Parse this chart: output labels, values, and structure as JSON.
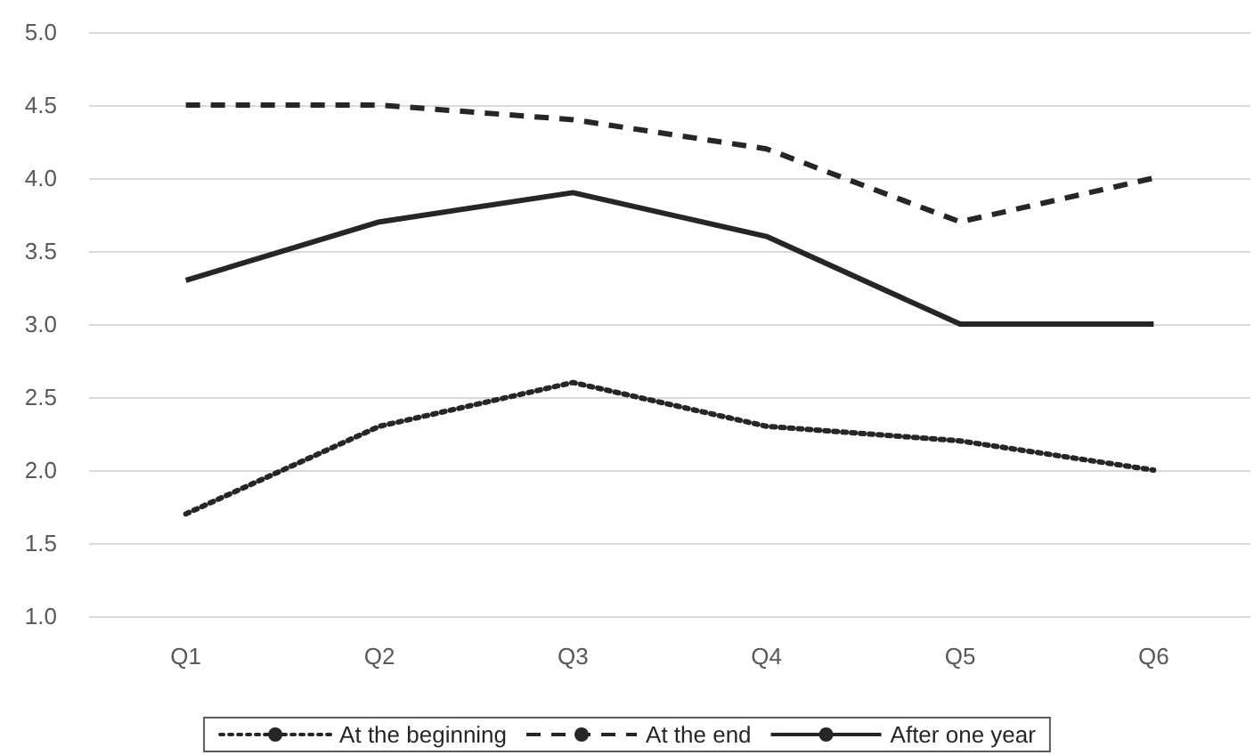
{
  "chart_data": {
    "type": "line",
    "categories": [
      "Q1",
      "Q2",
      "Q3",
      "Q4",
      "Q5",
      "Q6"
    ],
    "series": [
      {
        "name": "At the beginning",
        "color": "#262626",
        "line_style": "dotted",
        "values": [
          1.7,
          2.3,
          2.6,
          2.3,
          2.2,
          2.0
        ]
      },
      {
        "name": "At the end",
        "color": "#262626",
        "line_style": "dashed",
        "values": [
          4.5,
          4.5,
          4.4,
          4.2,
          3.7,
          4.0
        ]
      },
      {
        "name": "After one year",
        "color": "#262626",
        "line_style": "solid",
        "values": [
          3.3,
          3.7,
          3.9,
          3.6,
          3.0,
          3.0
        ]
      }
    ],
    "ylim": [
      1.0,
      5.0
    ],
    "yticks": [
      {
        "value": 1,
        "label": "1.0"
      },
      {
        "value": 1.5,
        "label": "1.5"
      },
      {
        "value": 2,
        "label": "2.0"
      },
      {
        "value": 2.5,
        "label": "2.5"
      },
      {
        "value": 3,
        "label": "3.0"
      },
      {
        "value": 3.5,
        "label": "3.5"
      },
      {
        "value": 4,
        "label": "4.0"
      },
      {
        "value": 4.5,
        "label": "4.5"
      },
      {
        "value": 5,
        "label": "5.0"
      }
    ],
    "grid": "y",
    "legend": "bottom",
    "marker": "none"
  }
}
